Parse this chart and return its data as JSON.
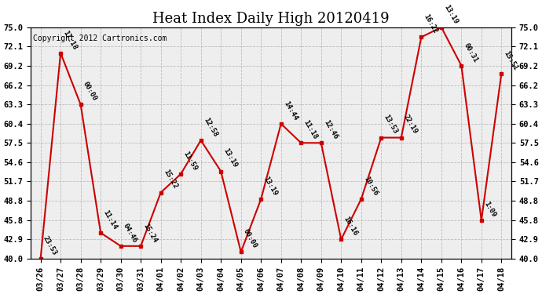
{
  "title": "Heat Index Daily High 20120419",
  "copyright": "Copyright 2012 Cartronics.com",
  "dates": [
    "03/26",
    "03/27",
    "03/28",
    "03/29",
    "03/30",
    "03/31",
    "04/01",
    "04/02",
    "04/03",
    "04/04",
    "04/05",
    "04/06",
    "04/07",
    "04/08",
    "04/09",
    "04/10",
    "04/11",
    "04/12",
    "04/13",
    "04/14",
    "04/15",
    "04/16",
    "04/17",
    "04/18"
  ],
  "values": [
    40.0,
    71.1,
    63.3,
    43.9,
    41.9,
    41.9,
    50.0,
    52.8,
    57.9,
    53.2,
    41.0,
    49.0,
    60.4,
    57.5,
    57.5,
    42.9,
    49.0,
    58.3,
    58.3,
    73.5,
    75.0,
    69.2,
    45.8,
    68.0
  ],
  "labels": [
    "23:53",
    "17:18",
    "00:00",
    "11:14",
    "04:46",
    "15:24",
    "15:22",
    "11:59",
    "12:58",
    "13:19",
    "00:00",
    "13:19",
    "14:44",
    "11:18",
    "12:46",
    "16:16",
    "10:56",
    "13:53",
    "22:19",
    "16:22",
    "13:19",
    "00:31",
    "1:09",
    "15:51"
  ],
  "line_color": "#cc0000",
  "bg_color": "#ffffff",
  "grid_color": "#bbbbbb",
  "plot_bg": "#eeeeee",
  "ylim_min": 40.0,
  "ylim_max": 75.0,
  "yticks": [
    40.0,
    42.9,
    45.8,
    48.8,
    51.7,
    54.6,
    57.5,
    60.4,
    63.3,
    66.2,
    69.2,
    72.1,
    75.0
  ],
  "title_fontsize": 13,
  "label_fontsize": 6.5,
  "tick_fontsize": 7.5,
  "copyright_fontsize": 7
}
